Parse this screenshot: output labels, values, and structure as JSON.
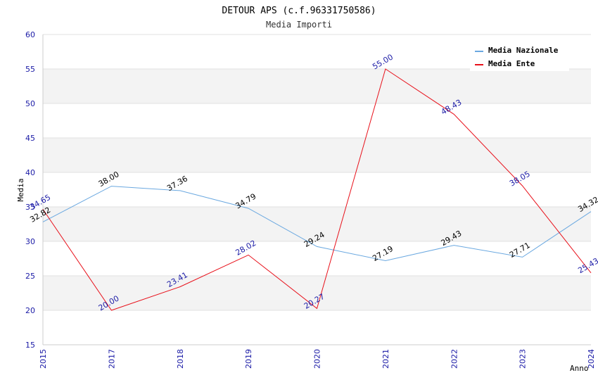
{
  "chart_data": {
    "type": "line",
    "title": "DETOUR APS (c.f.96331750586)",
    "subtitle": "Media Importi",
    "xlabel": "Anno",
    "ylabel": "Media",
    "categories": [
      "2015",
      "2017",
      "2018",
      "2019",
      "2020",
      "2021",
      "2022",
      "2023",
      "2024"
    ],
    "ylim": [
      15,
      60
    ],
    "yticks": [
      15,
      20,
      25,
      30,
      35,
      40,
      45,
      50,
      55,
      60
    ],
    "grid": true,
    "legend_position": "top-right",
    "series": [
      {
        "name": "Media Nazionale",
        "color": "#6aa8e0",
        "label_color": "#000000",
        "values": [
          32.82,
          38.0,
          37.36,
          34.79,
          29.24,
          27.19,
          29.43,
          27.71,
          34.32
        ],
        "labels": [
          "32.82",
          "38.00",
          "37.36",
          "34.79",
          "29.24",
          "27.19",
          "29.43",
          "27.71",
          "34.32"
        ]
      },
      {
        "name": "Media Ente",
        "color": "#e8101a",
        "label_color": "#1a1aa6",
        "values": [
          34.65,
          20.0,
          23.41,
          28.02,
          20.27,
          55.0,
          48.43,
          38.05,
          25.43
        ],
        "labels": [
          "34.65",
          "20.00",
          "23.41",
          "28.02",
          "20.27",
          "55.00",
          "48.43",
          "38.05",
          "25.43"
        ]
      }
    ]
  }
}
